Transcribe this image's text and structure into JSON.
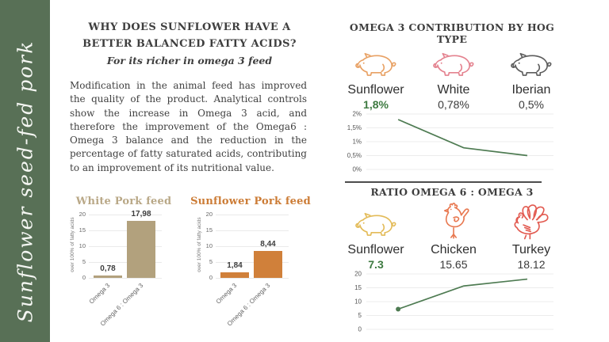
{
  "colors": {
    "sidebar_green": "#587056",
    "accent_green": "#3d7a40",
    "text_dark": "#3e3e3e",
    "white_pork_tan": "#b2a17d",
    "sunflower_orange": "#d0803a",
    "line_green": "#4e7b52"
  },
  "sidebar": {
    "vertical_text": "Sunflower seed-fed pork"
  },
  "main": {
    "heading": "WHY DOES SUNFLOWER HAVE A BETTER BALANCED FATTY ACIDS?",
    "subtitle": "For its richer in omega 3 feed",
    "paragraph": "Modification in the animal feed has improved the quality of the product. Analytical controls show the increase in Omega 3 acid, and therefore the improvement of the Omega6 : Omega 3 balance and the reduction in the percentage of fatty saturated acids, contributing to an improvement of its nutritional value."
  },
  "right": {
    "section1": {
      "heading": "OMEGA 3 CONTRIBUTION BY HOG TYPE",
      "items": [
        {
          "icon": "pig-icon",
          "color": "#e8a164",
          "label": "Sunflower",
          "value": "1,8%"
        },
        {
          "icon": "pig-icon",
          "color": "#e4828f",
          "label": "White",
          "value": "0,78%"
        },
        {
          "icon": "pig-icon",
          "color": "#5c5c5c",
          "label": "Iberian",
          "value": "0,5%"
        }
      ]
    },
    "section2": {
      "heading": "RATIO OMEGA 6 : OMEGA 3",
      "items": [
        {
          "icon": "pig-icon",
          "color": "#e3bb58",
          "label": "Sunflower",
          "value": "7.3"
        },
        {
          "icon": "chicken-icon",
          "color": "#e87850",
          "label": "Chicken",
          "value": "15.65"
        },
        {
          "icon": "turkey-icon",
          "color": "#e25a50",
          "label": "Turkey",
          "value": "18.12"
        }
      ]
    }
  },
  "chart_data": [
    {
      "type": "bar",
      "title": "White Pork feed",
      "title_color": "#b9a887",
      "bar_color": "#b2a17d",
      "categories": [
        "Omega 3",
        "Omega 6 : Omega 3"
      ],
      "values": [
        0.78,
        17.98
      ],
      "value_labels": [
        "0,78",
        "17,98"
      ],
      "ylabel": "over 100% of fatty acids",
      "yticks": [
        0,
        5,
        10,
        15,
        20
      ],
      "ylim": [
        0,
        20
      ],
      "grid": true
    },
    {
      "type": "bar",
      "title": "Sunflower Pork feed",
      "title_color": "#cc7c36",
      "bar_color": "#d0803a",
      "categories": [
        "Omega 3",
        "Omega 6 : Omega 3"
      ],
      "values": [
        1.84,
        8.44
      ],
      "value_labels": [
        "1,84",
        "8,44"
      ],
      "ylabel": "over 100% of fatty acids",
      "yticks": [
        0,
        5,
        10,
        15,
        20
      ],
      "ylim": [
        0,
        20
      ],
      "grid": true
    },
    {
      "type": "line",
      "x": [
        "Sunflower",
        "White",
        "Iberian"
      ],
      "values": [
        1.8,
        0.78,
        0.5
      ],
      "yticks": [
        2,
        1.5,
        1,
        0.5,
        0
      ],
      "ytick_labels": [
        "2%",
        "1,5%",
        "1%",
        "0,5%",
        "0%"
      ],
      "ylim": [
        0,
        2
      ],
      "line_color": "#4e7b52",
      "first_point_marker": false,
      "grid": true
    },
    {
      "type": "line",
      "x": [
        "Sunflower",
        "Chicken",
        "Turkey"
      ],
      "values": [
        7.3,
        15.65,
        18.12
      ],
      "yticks": [
        20,
        15,
        10,
        5,
        0
      ],
      "ytick_labels": [
        "20",
        "15",
        "10",
        "5",
        "0"
      ],
      "ylim": [
        0,
        20
      ],
      "line_color": "#4e7b52",
      "first_point_marker": true,
      "grid": true
    }
  ]
}
